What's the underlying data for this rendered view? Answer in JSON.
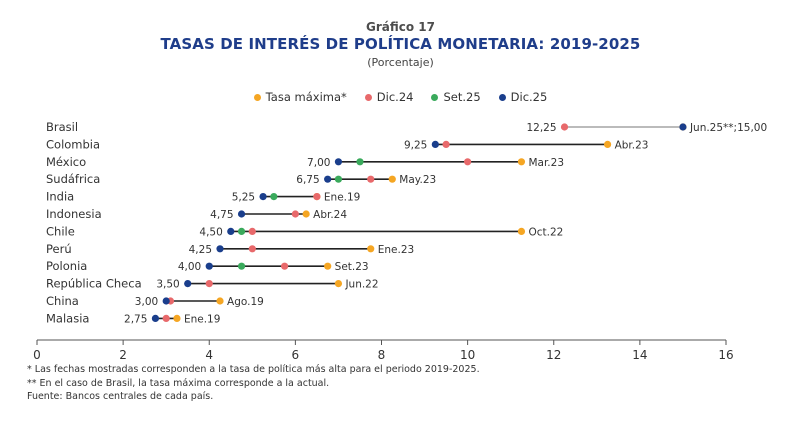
{
  "chart_data": {
    "type": "dumbbell",
    "subtitle_top": "Gráfico 17",
    "title": "TASAS DE INTERÉS DE POLÍTICA MONETARIA: 2019-2025",
    "unit": "(Porcentaje)",
    "xlim": [
      0,
      16
    ],
    "xticks": [
      "0",
      "2",
      "4",
      "6",
      "8",
      "10",
      "12",
      "14",
      "16"
    ],
    "xtick_values": [
      0,
      2,
      4,
      6,
      8,
      10,
      12,
      14,
      16
    ],
    "legend": [
      {
        "name": "Tasa máxima*",
        "color": "#f5a623"
      },
      {
        "name": "Dic.24",
        "color": "#e8696b"
      },
      {
        "name": "Set.25",
        "color": "#3aaa5c"
      },
      {
        "name": "Dic.25",
        "color": "#1a3e8c"
      }
    ],
    "legend_position": "top-center",
    "countries": [
      {
        "name": "Brasil",
        "max": 15.0,
        "dic24": 12.25,
        "set25": null,
        "dic25": 15.0,
        "left_label": "12,25",
        "right_label": "Jun.25**;15,00"
      },
      {
        "name": "Colombia",
        "max": 13.25,
        "dic24": 9.5,
        "set25": null,
        "dic25": 9.25,
        "left_label": "9,25",
        "right_label": "Abr.23"
      },
      {
        "name": "México",
        "max": 11.25,
        "dic24": 10.0,
        "set25": 7.5,
        "dic25": 7.0,
        "left_label": "7,00",
        "right_label": "Mar.23"
      },
      {
        "name": "Sudáfrica",
        "max": 8.25,
        "dic24": 7.75,
        "set25": 7.0,
        "dic25": 6.75,
        "left_label": "6,75",
        "right_label": "May.23"
      },
      {
        "name": "India",
        "max": 6.5,
        "dic24": 6.5,
        "set25": 5.5,
        "dic25": 5.25,
        "left_label": "5,25",
        "right_label": "Ene.19"
      },
      {
        "name": "Indonesia",
        "max": 6.25,
        "dic24": 6.0,
        "set25": null,
        "dic25": 4.75,
        "left_label": "4,75",
        "right_label": "Abr.24"
      },
      {
        "name": "Chile",
        "max": 11.25,
        "dic24": 5.0,
        "set25": 4.75,
        "dic25": 4.5,
        "left_label": "4,50",
        "right_label": "Oct.22"
      },
      {
        "name": "Perú",
        "max": 7.75,
        "dic24": 5.0,
        "set25": null,
        "dic25": 4.25,
        "left_label": "4,25",
        "right_label": "Ene.23"
      },
      {
        "name": "Polonia",
        "max": 6.75,
        "dic24": 5.75,
        "set25": 4.75,
        "dic25": 4.0,
        "left_label": "4,00",
        "right_label": "Set.23"
      },
      {
        "name": "República Checa",
        "max": 7.0,
        "dic24": 4.0,
        "set25": null,
        "dic25": 3.5,
        "left_label": "3,50",
        "right_label": "Jun.22"
      },
      {
        "name": "China",
        "max": 4.25,
        "dic24": 3.1,
        "set25": null,
        "dic25": 3.0,
        "left_label": "3,00",
        "right_label": "Ago.19"
      },
      {
        "name": "Malasia",
        "max": 3.25,
        "dic24": 3.0,
        "set25": null,
        "dic25": 2.75,
        "left_label": "2,75",
        "right_label": "Ene.19"
      }
    ],
    "notes": [
      "* Las fechas mostradas corresponden a la tasa de política más alta para el periodo 2019-2025.",
      "** En el caso de Brasil, la tasa máxima corresponde a la actual.",
      "Fuente: Bancos centrales de cada país."
    ]
  }
}
